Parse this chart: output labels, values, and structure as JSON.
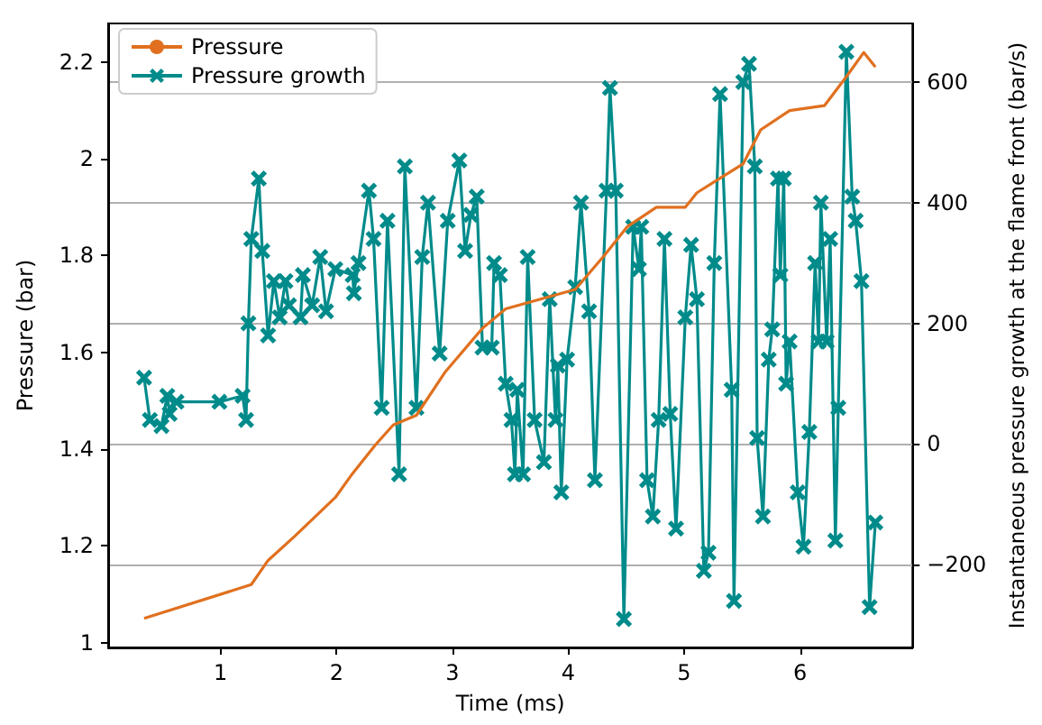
{
  "chart_data": {
    "type": "line",
    "xlabel": "Time (ms)",
    "ylabel": "Pressure (bar)",
    "y2label": "Instantaneous pressure growth at the flame front (bar/s)",
    "xlim": [
      0.03,
      6.97
    ],
    "xticks": [
      1,
      2,
      3,
      4,
      5,
      6
    ],
    "ylim": [
      0.99,
      2.28
    ],
    "yticks": [
      1.0,
      1.2,
      1.4,
      1.6,
      1.8,
      2.0,
      2.2
    ],
    "y2lim": [
      -337,
      697
    ],
    "y2ticks": [
      {
        "value": -200,
        "label": "−200"
      },
      0,
      200,
      400,
      600
    ],
    "grid": "y2",
    "legend": "top left",
    "series": [
      {
        "name": "Pressure",
        "color": "#e0701f",
        "marker": "none",
        "x": [
          0.34,
          1.265,
          1.41,
          1.64,
          1.99,
          2.14,
          2.34,
          2.49,
          2.69,
          2.94,
          3.26,
          3.46,
          3.76,
          4.06,
          4.31,
          4.51,
          4.76,
          5.01,
          5.11,
          5.31,
          5.51,
          5.66,
          5.91,
          6.21,
          6.4,
          6.55,
          6.65
        ],
        "values": [
          1.05,
          1.12,
          1.17,
          1.22,
          1.3,
          1.35,
          1.41,
          1.45,
          1.47,
          1.56,
          1.65,
          1.69,
          1.71,
          1.73,
          1.8,
          1.86,
          1.9,
          1.9,
          1.93,
          1.96,
          1.99,
          2.06,
          2.1,
          2.11,
          2.17,
          2.22,
          2.19
        ]
      },
      {
        "name": "Pressure growth",
        "color": "#008b8b",
        "marker": "cross",
        "axis": "y2",
        "x": [
          0.34,
          0.39,
          0.49,
          0.54,
          0.56,
          0.62,
          0.99,
          1.19,
          1.22,
          1.24,
          1.265,
          1.33,
          1.36,
          1.41,
          1.46,
          1.51,
          1.56,
          1.59,
          1.69,
          1.71,
          1.79,
          1.86,
          1.91,
          1.99,
          2.14,
          2.15,
          2.19,
          2.28,
          2.32,
          2.39,
          2.44,
          2.54,
          2.59,
          2.69,
          2.74,
          2.79,
          2.89,
          2.96,
          3.06,
          3.11,
          3.16,
          3.21,
          3.26,
          3.34,
          3.36,
          3.41,
          3.46,
          3.51,
          3.54,
          3.56,
          3.61,
          3.65,
          3.71,
          3.79,
          3.84,
          3.89,
          3.91,
          3.94,
          3.99,
          4.06,
          4.11,
          4.18,
          4.23,
          4.33,
          4.36,
          4.41,
          4.48,
          4.56,
          4.61,
          4.63,
          4.68,
          4.73,
          4.78,
          4.83,
          4.88,
          4.93,
          5.01,
          5.06,
          5.11,
          5.17,
          5.21,
          5.26,
          5.31,
          5.41,
          5.43,
          5.51,
          5.56,
          5.61,
          5.63,
          5.68,
          5.73,
          5.76,
          5.81,
          5.83,
          5.86,
          5.88,
          5.91,
          5.98,
          6.03,
          6.08,
          6.13,
          6.16,
          6.18,
          6.23,
          6.26,
          6.305,
          6.33,
          6.4,
          6.45,
          6.48,
          6.53,
          6.6,
          6.65
        ],
        "values": [
          110,
          40,
          30,
          80,
          50,
          70,
          70,
          80,
          40,
          200,
          340,
          440,
          320,
          180,
          270,
          210,
          270,
          230,
          210,
          280,
          230,
          310,
          220,
          290,
          280,
          250,
          300,
          420,
          340,
          60,
          370,
          -50,
          460,
          60,
          310,
          400,
          150,
          370,
          470,
          320,
          380,
          410,
          160,
          160,
          300,
          280,
          100,
          40,
          -50,
          90,
          -50,
          310,
          40,
          -30,
          240,
          40,
          130,
          -80,
          140,
          260,
          400,
          220,
          -60,
          420,
          590,
          420,
          -290,
          360,
          290,
          360,
          -60,
          -120,
          40,
          340,
          50,
          -140,
          210,
          330,
          240,
          -210,
          -180,
          300,
          580,
          90,
          -260,
          600,
          630,
          460,
          10,
          -120,
          140,
          190,
          440,
          280,
          440,
          100,
          170,
          -80,
          -170,
          20,
          300,
          170,
          400,
          170,
          340,
          -160,
          60,
          650,
          410,
          370,
          270,
          -270,
          -130
        ]
      }
    ]
  }
}
